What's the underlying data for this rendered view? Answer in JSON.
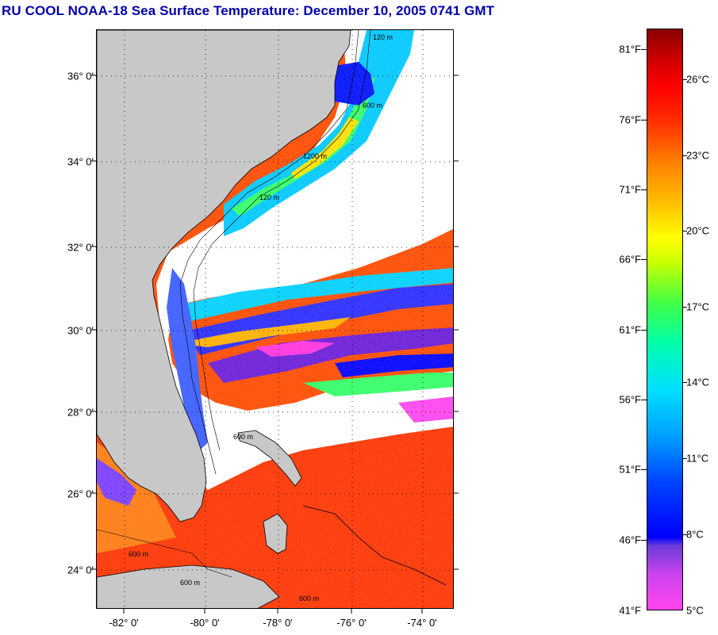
{
  "title": "RU COOL  NOAA-18  Sea Surface Temperature:  December 10, 2005 0741 GMT",
  "map": {
    "latitude_labels": [
      "36° 0'",
      "34° 0'",
      "32° 0'",
      "30° 0'",
      "28° 0'",
      "26° 0'",
      "24° 0'"
    ],
    "longitude_labels": [
      "-82° 0'",
      "-80° 0'",
      "-78° 0'",
      "-76° 0'",
      "-74° 0'"
    ],
    "isobath_labels": [
      "120 m",
      "600 m",
      "1200 m",
      "120 m",
      "600 m",
      "600 m",
      "600 m",
      "600 m"
    ],
    "colors": {
      "land": "#c8c8c8",
      "cloud": "#ffffff",
      "warm_water": "#ff2a00",
      "cold_water": "#0000ff"
    }
  },
  "colorbar": {
    "fahrenheit_labels": [
      "81°F",
      "76°F",
      "71°F",
      "66°F",
      "61°F",
      "56°F",
      "51°F",
      "46°F",
      "41°F"
    ],
    "celsius_labels": [
      "26°C",
      "23°C",
      "20°C",
      "17°C",
      "14°C",
      "11°C",
      "8°C",
      "5°C"
    ],
    "range_fahrenheit": [
      41,
      83
    ],
    "range_celsius": [
      5,
      28
    ]
  }
}
